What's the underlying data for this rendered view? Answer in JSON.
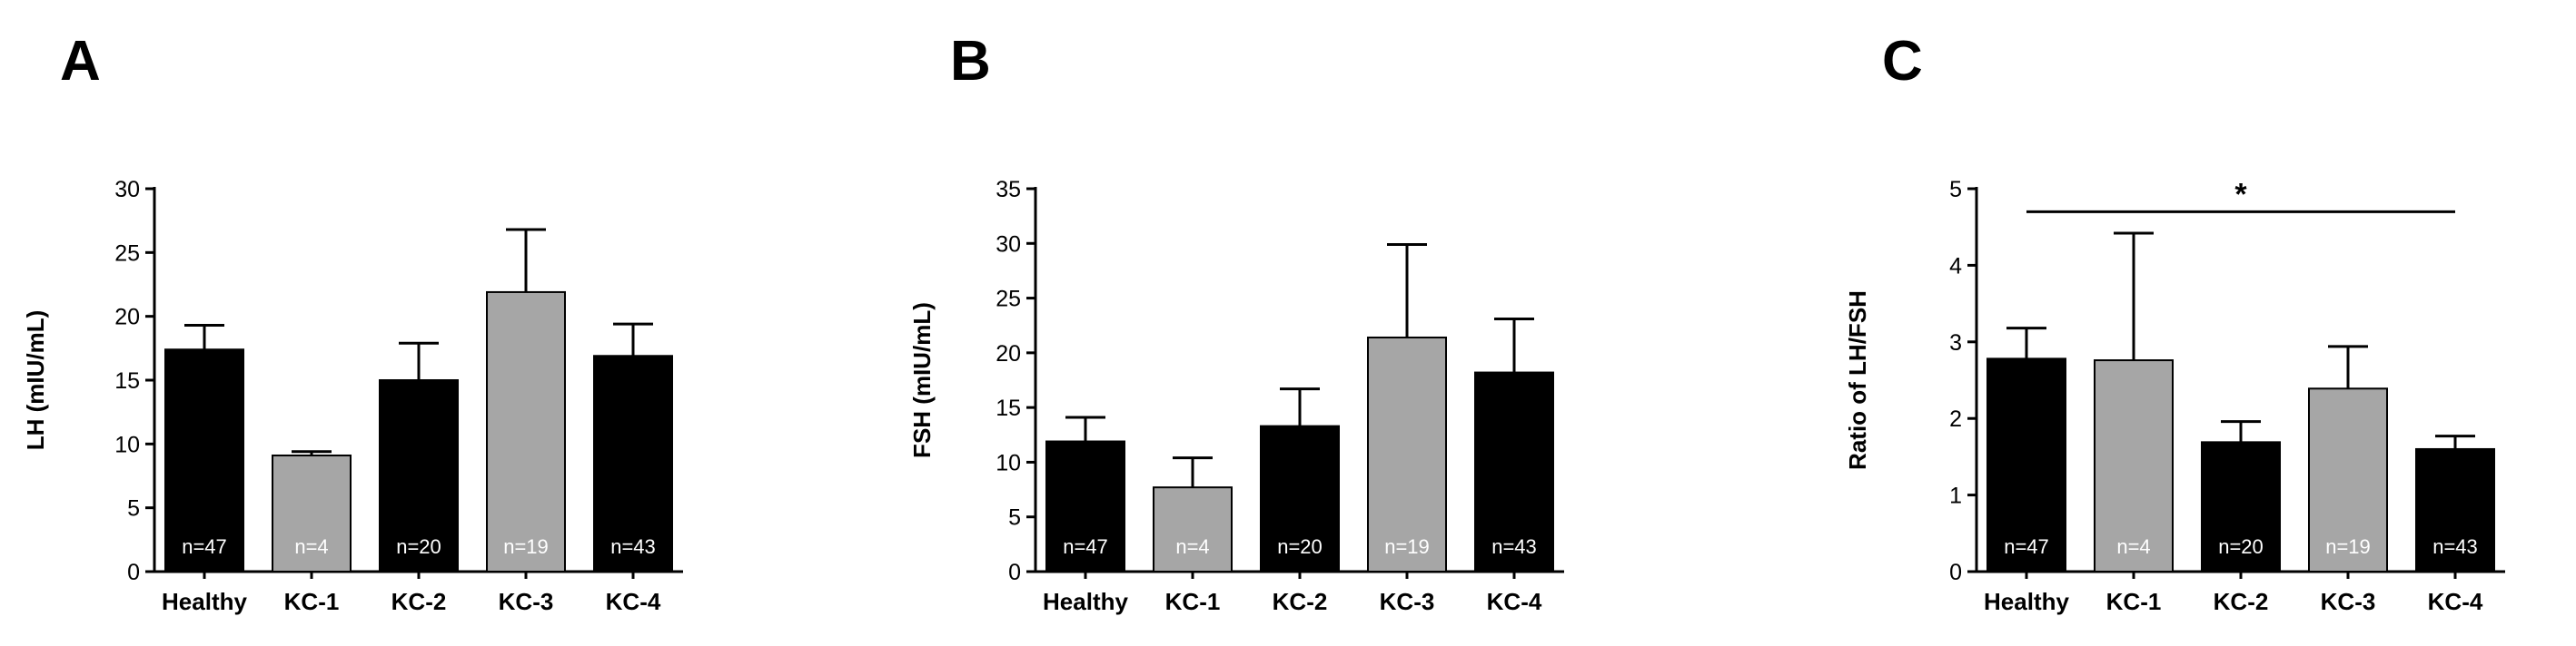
{
  "figure": {
    "colors": {
      "dark": "#000000",
      "grey": "#a6a6a6",
      "axis": "#000000",
      "label_on_bar": "#ffffff"
    }
  },
  "chart_data": [
    {
      "panel_letter": "A",
      "type": "bar",
      "ylabel": "LH  (mIU/mL)",
      "ylim": [
        0,
        30
      ],
      "yticks": [
        0,
        5,
        10,
        15,
        20,
        25,
        30
      ],
      "categories": [
        "Healthy",
        "KC-1",
        "KC-2",
        "KC-3",
        "KC-4"
      ],
      "values": [
        17.4,
        9.1,
        15.0,
        21.9,
        16.9
      ],
      "errors": [
        1.9,
        0.3,
        2.9,
        4.9,
        2.5
      ],
      "n_labels": [
        "n=47",
        "n=4",
        "n=20",
        "n=19",
        "n=43"
      ],
      "bar_colors": [
        "dark",
        "grey",
        "dark",
        "grey",
        "dark"
      ],
      "significance": null
    },
    {
      "panel_letter": "B",
      "type": "bar",
      "ylabel": "FSH  (mIU/mL)",
      "ylim": [
        0,
        35
      ],
      "yticks": [
        0,
        5,
        10,
        15,
        20,
        25,
        30,
        35
      ],
      "categories": [
        "Healthy",
        "KC-1",
        "KC-2",
        "KC-3",
        "KC-4"
      ],
      "values": [
        11.9,
        7.7,
        13.3,
        21.4,
        18.2
      ],
      "errors": [
        2.2,
        2.7,
        3.4,
        8.5,
        4.9
      ],
      "n_labels": [
        "n=47",
        "n=4",
        "n=20",
        "n=19",
        "n=43"
      ],
      "bar_colors": [
        "dark",
        "grey",
        "dark",
        "grey",
        "dark"
      ],
      "significance": null
    },
    {
      "panel_letter": "C",
      "type": "bar",
      "ylabel": "Ratio of LH/FSH",
      "ylim": [
        0,
        5
      ],
      "yticks": [
        0,
        1,
        2,
        3,
        4,
        5
      ],
      "categories": [
        "Healthy",
        "KC-1",
        "KC-2",
        "KC-3",
        "KC-4"
      ],
      "values": [
        2.78,
        2.76,
        1.69,
        2.39,
        1.6
      ],
      "errors": [
        0.4,
        1.66,
        0.27,
        0.55,
        0.17
      ],
      "n_labels": [
        "n=47",
        "n=4",
        "n=20",
        "n=19",
        "n=43"
      ],
      "bar_colors": [
        "dark",
        "grey",
        "dark",
        "grey",
        "dark"
      ],
      "significance": {
        "from": "Healthy",
        "to": "KC-4",
        "label": "*",
        "y": 4.7
      }
    }
  ]
}
